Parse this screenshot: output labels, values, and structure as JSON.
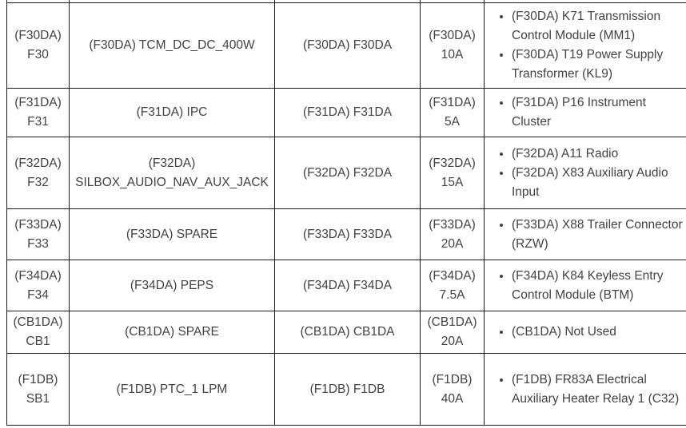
{
  "colors": {
    "text": "#424242",
    "border": "#1c1c1c",
    "background": "#ffffff"
  },
  "table": {
    "rows": [
      {
        "fuse": "(F30DA) F30",
        "function": "(F30DA) TCM_DC_DC_400W",
        "code": "(F30DA) F30DA",
        "amperage": "(F30DA) 10A",
        "components": [
          "(F30DA) K71 Transmission Control Module (MM1)",
          "(F30DA) T19 Power Supply Transformer (KL9)"
        ]
      },
      {
        "fuse": "(F31DA) F31",
        "function": "(F31DA) IPC",
        "code": "(F31DA) F31DA",
        "amperage": "(F31DA) 5A",
        "components": [
          "(F31DA) P16 Instrument Cluster"
        ]
      },
      {
        "fuse": "(F32DA) F32",
        "function": "(F32DA) SILBOX_AUDIO_NAV_AUX_JACK",
        "code": "(F32DA) F32DA",
        "amperage": "(F32DA) 15A",
        "components": [
          "(F32DA) A11 Radio",
          "(F32DA) X83 Auxiliary Audio Input"
        ]
      },
      {
        "fuse": "(F33DA) F33",
        "function": "(F33DA) SPARE",
        "code": "(F33DA) F33DA",
        "amperage": "(F33DA) 20A",
        "components": [
          "(F33DA) X88 Trailer Connector (RZW)"
        ]
      },
      {
        "fuse": "(F34DA) F34",
        "function": "(F34DA) PEPS",
        "code": "(F34DA) F34DA",
        "amperage": "(F34DA) 7.5A",
        "components": [
          "(F34DA) K84 Keyless Entry Control Module (BTM)"
        ]
      },
      {
        "fuse": "(CB1DA) CB1",
        "function": "(CB1DA) SPARE",
        "code": "(CB1DA) CB1DA",
        "amperage": "(CB1DA) 20A",
        "components": [
          "(CB1DA) Not Used"
        ]
      },
      {
        "fuse": "(F1DB) SB1",
        "function": "(F1DB) PTC_1 LPM",
        "code": "(F1DB) F1DB",
        "amperage": "(F1DB) 40A",
        "components": [
          "(F1DB) FR83A Electrical Auxiliary Heater Relay 1 (C32)"
        ]
      }
    ]
  }
}
